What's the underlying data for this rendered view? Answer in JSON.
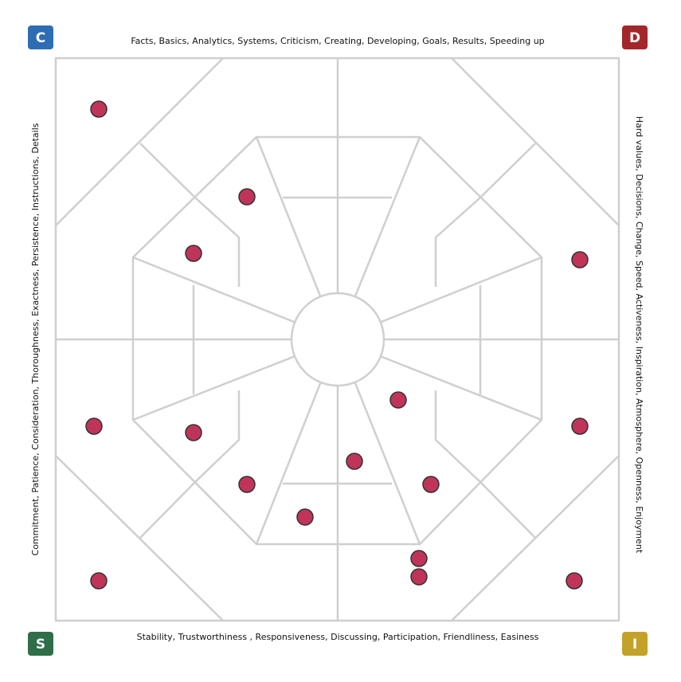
{
  "corners": {
    "top_left": "C",
    "top_right": "D",
    "bottom_left": "S",
    "bottom_right": "I"
  },
  "edges": {
    "top": "Facts, Basics, Analytics, Systems, Criticism, Creating, Developing, Goals, Results, Speeding up",
    "right": "Hard values, Decisions, Change, Speed, Activeness, Inspiration, Atmosphere, Openness, Enjoyment",
    "bottom": "Stability, Trustworthiness , Responsiveness, Discussing, Participation, Friendliness, Easiness",
    "left": "Commitment, Patience, Consideration, Thoroughness, Exactness, Persistence, Instructions, Details"
  }
}
